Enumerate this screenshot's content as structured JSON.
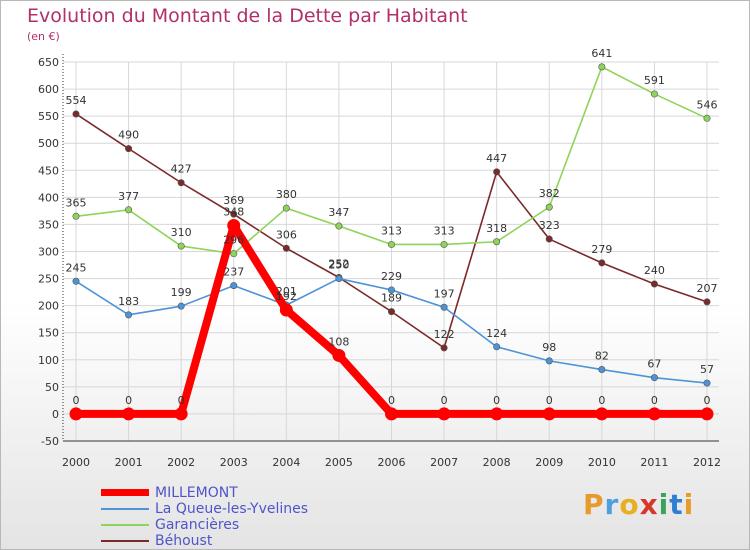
{
  "title": "Evolution du Montant de la Dette par Habitant",
  "unit": "(en €)",
  "logo": "Proxiti",
  "colors": {
    "title": "#b0306a",
    "grid": "#d7d7d7",
    "axis": "#333333",
    "millemont": "#ff0000",
    "laqueue": "#4d93d8",
    "garancieres": "#8fd45a",
    "behoust": "#7a2a2a"
  },
  "chart_data": {
    "type": "line",
    "x": [
      "2000",
      "2001",
      "2002",
      "2003",
      "2004",
      "2005",
      "2006",
      "2007",
      "2008",
      "2009",
      "2010",
      "2011",
      "2012"
    ],
    "yticks": [
      -50,
      0,
      50,
      100,
      150,
      200,
      250,
      300,
      350,
      400,
      450,
      500,
      550,
      600,
      650
    ],
    "ylim": [
      -50,
      650
    ],
    "grid": true,
    "legend_position": "bottom-left",
    "series": [
      {
        "name": "MILLEMONT",
        "color": "#ff0000",
        "values": [
          0,
          0,
          0,
          348,
          192,
          108,
          0,
          0,
          0,
          0,
          0,
          0,
          0
        ],
        "labels": [
          "0",
          "0",
          "0",
          "348",
          "192",
          "108",
          "0",
          "0",
          "0",
          "0",
          "0",
          "0",
          "0"
        ]
      },
      {
        "name": "La Queue-les-Yvelines",
        "color": "#4d93d8",
        "values": [
          245,
          183,
          199,
          237,
          201,
          250,
          229,
          197,
          124,
          98,
          82,
          67,
          57
        ],
        "labels": [
          "245",
          "183",
          "199",
          "237",
          "201",
          "250",
          "229",
          "197",
          "124",
          "98",
          "82",
          "67",
          "57"
        ]
      },
      {
        "name": "Garancières",
        "color": "#8fd45a",
        "values": [
          365,
          377,
          310,
          296,
          380,
          347,
          313,
          313,
          318,
          382,
          641,
          591,
          546
        ],
        "labels": [
          "365",
          "377",
          "310",
          "296",
          "380",
          "347",
          "313",
          "313",
          "318",
          "382",
          "641",
          "591",
          "546"
        ]
      },
      {
        "name": "Béhoust",
        "color": "#7a2a2a",
        "values": [
          554,
          490,
          427,
          369,
          306,
          252,
          189,
          122,
          447,
          323,
          279,
          240,
          207
        ],
        "labels": [
          "554",
          "490",
          "427",
          "369",
          "306",
          "252",
          "189",
          "122",
          "447",
          "323",
          "279",
          "240",
          "207"
        ]
      }
    ]
  }
}
